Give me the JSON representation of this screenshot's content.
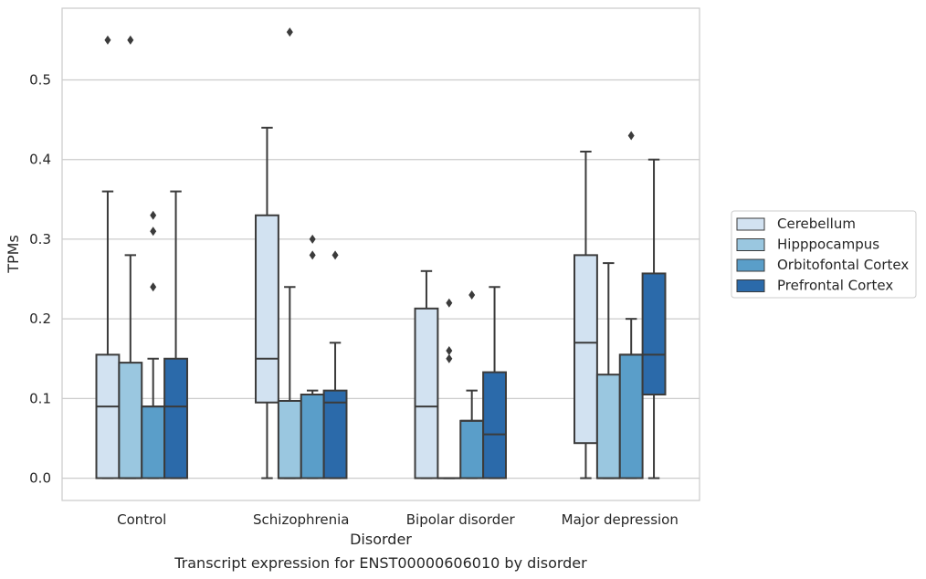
{
  "chart_data": {
    "type": "box",
    "title": "Transcript expression for ENST00000606010 by disorder",
    "xlabel": "Disorder",
    "ylabel": "TPMs",
    "ylim": [
      -0.028,
      0.59
    ],
    "yticks": [
      "0.0",
      "0.1",
      "0.2",
      "0.3",
      "0.4",
      "0.5"
    ],
    "ytick_values": [
      0.0,
      0.1,
      0.2,
      0.3,
      0.4,
      0.5
    ],
    "grid": "horizontal",
    "legend_position": "right",
    "categories": [
      "Control",
      "Schizophrenia",
      "Bipolar disorder",
      "Major depression"
    ],
    "series": [
      {
        "name": "Cerebellum",
        "color": "#d2e2f1",
        "boxes": [
          {
            "whisker_low": 0.0,
            "q1": 0.0,
            "median": 0.09,
            "q3": 0.155,
            "whisker_high": 0.36,
            "outliers": [
              0.55
            ]
          },
          {
            "whisker_low": 0.0,
            "q1": 0.095,
            "median": 0.15,
            "q3": 0.33,
            "whisker_high": 0.44,
            "outliers": []
          },
          {
            "whisker_low": 0.0,
            "q1": 0.0,
            "median": 0.09,
            "q3": 0.213,
            "whisker_high": 0.26,
            "outliers": []
          },
          {
            "whisker_low": 0.0,
            "q1": 0.044,
            "median": 0.17,
            "q3": 0.28,
            "whisker_high": 0.41,
            "outliers": []
          }
        ]
      },
      {
        "name": "Hipppocampus",
        "color": "#9ac7e0",
        "boxes": [
          {
            "whisker_low": 0.0,
            "q1": 0.0,
            "median": 0.0,
            "q3": 0.145,
            "whisker_high": 0.28,
            "outliers": [
              0.55
            ]
          },
          {
            "whisker_low": 0.0,
            "q1": 0.0,
            "median": 0.0,
            "q3": 0.097,
            "whisker_high": 0.24,
            "outliers": [
              0.56
            ]
          },
          {
            "whisker_low": 0.0,
            "q1": 0.0,
            "median": 0.0,
            "q3": 0.0,
            "whisker_high": 0.0,
            "outliers": [
              0.15,
              0.16,
              0.22
            ]
          },
          {
            "whisker_low": 0.0,
            "q1": 0.0,
            "median": 0.0,
            "q3": 0.13,
            "whisker_high": 0.27,
            "outliers": []
          }
        ]
      },
      {
        "name": "Orbitofontal Cortex",
        "color": "#5a9ec9",
        "boxes": [
          {
            "whisker_low": 0.0,
            "q1": 0.0,
            "median": 0.09,
            "q3": 0.09,
            "whisker_high": 0.15,
            "outliers": [
              0.24,
              0.31,
              0.33
            ]
          },
          {
            "whisker_low": 0.0,
            "q1": 0.0,
            "median": 0.105,
            "q3": 0.105,
            "whisker_high": 0.11,
            "outliers": [
              0.28,
              0.3
            ]
          },
          {
            "whisker_low": 0.0,
            "q1": 0.0,
            "median": 0.072,
            "q3": 0.072,
            "whisker_high": 0.11,
            "outliers": [
              0.23
            ]
          },
          {
            "whisker_low": 0.0,
            "q1": 0.0,
            "median": 0.155,
            "q3": 0.155,
            "whisker_high": 0.2,
            "outliers": [
              0.43
            ]
          }
        ]
      },
      {
        "name": "Prefrontal Cortex",
        "color": "#2b6aaa",
        "boxes": [
          {
            "whisker_low": 0.0,
            "q1": 0.0,
            "median": 0.09,
            "q3": 0.15,
            "whisker_high": 0.36,
            "outliers": []
          },
          {
            "whisker_low": 0.0,
            "q1": 0.0,
            "median": 0.095,
            "q3": 0.11,
            "whisker_high": 0.17,
            "outliers": [
              0.28
            ]
          },
          {
            "whisker_low": 0.0,
            "q1": 0.0,
            "median": 0.055,
            "q3": 0.133,
            "whisker_high": 0.24,
            "outliers": []
          },
          {
            "whisker_low": 0.0,
            "q1": 0.105,
            "median": 0.155,
            "q3": 0.257,
            "whisker_high": 0.4,
            "outliers": []
          }
        ]
      }
    ]
  }
}
